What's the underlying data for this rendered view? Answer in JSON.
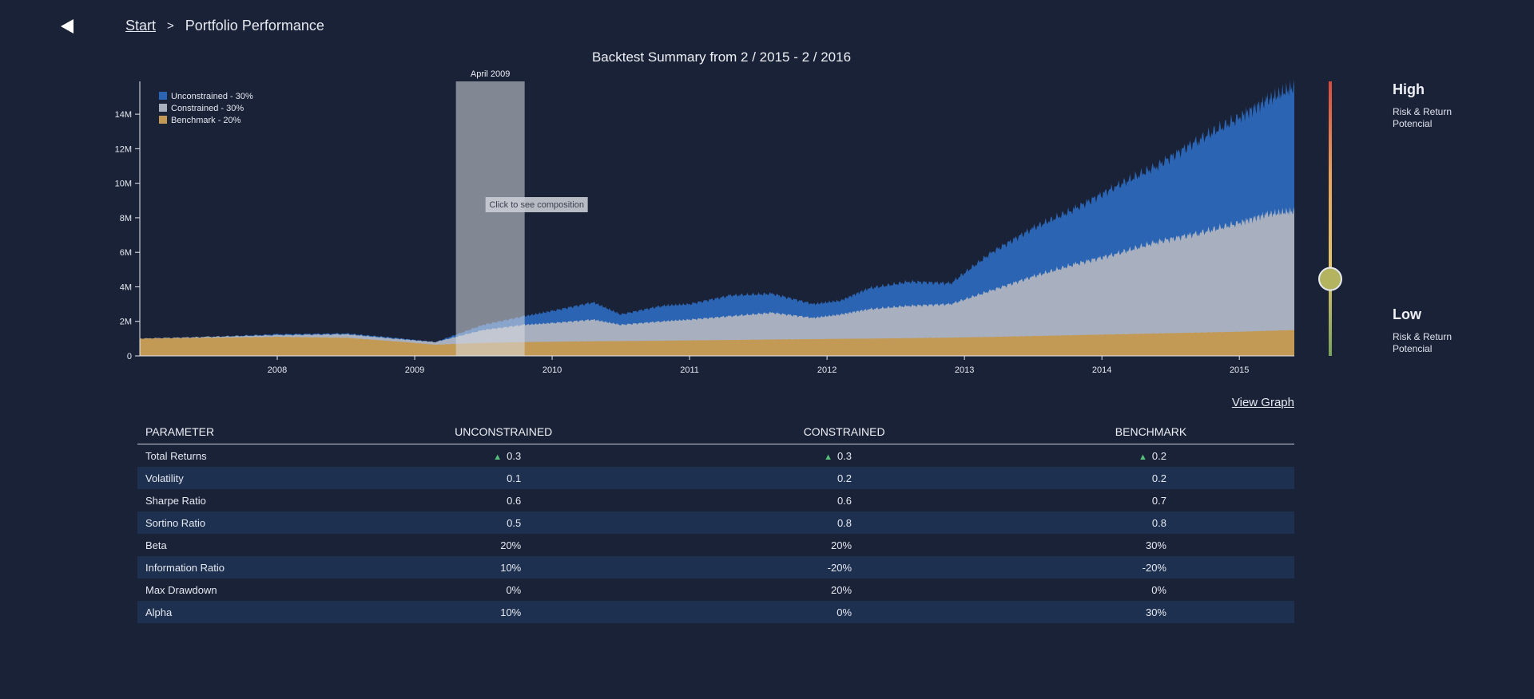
{
  "nav": {
    "back_icon": "back-arrow-icon",
    "breadcrumb_start": "Start",
    "breadcrumb_separator": ">",
    "breadcrumb_current": "Portfolio Performance"
  },
  "chart": {
    "title": "Backtest Summary from 2 / 2015 - 2 / 2016",
    "highlight_label": "April 2009",
    "tooltip": "Click to see composition"
  },
  "risk": {
    "high_label": "High",
    "high_desc": "Risk & Return Potencial",
    "low_label": "Low",
    "low_desc": "Risk & Return Potencial",
    "slider_value": 0.28,
    "gradient_colors": [
      "#d64a3f",
      "#e8a05a",
      "#e4c46a",
      "#7aa25a"
    ]
  },
  "view_graph": "View Graph",
  "table": {
    "headers": [
      "PARAMETER",
      "UNCONSTRAINED",
      "CONSTRAINED",
      "BENCHMARK"
    ],
    "rows": [
      {
        "name": "Total Returns",
        "u": "0.3",
        "c": "0.3",
        "b": "0.2",
        "trend": "up"
      },
      {
        "name": "Volatility",
        "u": "0.1",
        "c": "0.2",
        "b": "0.2"
      },
      {
        "name": "Sharpe Ratio",
        "u": "0.6",
        "c": "0.6",
        "b": "0.7"
      },
      {
        "name": "Sortino Ratio",
        "u": "0.5",
        "c": "0.8",
        "b": "0.8"
      },
      {
        "name": "Beta",
        "u": "20%",
        "c": "20%",
        "b": "30%"
      },
      {
        "name": "Information Ratio",
        "u": "10%",
        "c": "-20%",
        "b": "-20%"
      },
      {
        "name": "Max Drawdown",
        "u": "0%",
        "c": "20%",
        "b": "0%"
      },
      {
        "name": "Alpha",
        "u": "10%",
        "c": "0%",
        "b": "30%"
      }
    ]
  },
  "chart_data": {
    "type": "area",
    "title": "Backtest Summary from 2 / 2015 - 2 / 2016",
    "xlabel": "",
    "ylabel": "",
    "x_ticks": [
      "2008",
      "2009",
      "2010",
      "2011",
      "2012",
      "2013",
      "2014",
      "2015"
    ],
    "y_ticks": [
      "0",
      "2M",
      "4M",
      "6M",
      "8M",
      "10M",
      "12M",
      "14M"
    ],
    "xlim": [
      2007.0,
      2015.4
    ],
    "ylim": [
      0,
      15900000
    ],
    "legend_position": "top-left",
    "highlight": {
      "label": "April 2009",
      "start": 2009.3,
      "end": 2009.8
    },
    "series": [
      {
        "name": "Unconstrained - 30%",
        "color": "#2a64b3",
        "x": [
          2007.0,
          2007.5,
          2008.0,
          2008.5,
          2008.85,
          2009.15,
          2009.5,
          2009.8,
          2010.0,
          2010.3,
          2010.5,
          2010.8,
          2011.0,
          2011.3,
          2011.6,
          2011.9,
          2012.1,
          2012.3,
          2012.6,
          2012.9,
          2013.2,
          2013.5,
          2013.8,
          2014.1,
          2014.4,
          2014.7,
          2015.0,
          2015.2,
          2015.4
        ],
        "values": [
          1000000,
          1100000,
          1250000,
          1300000,
          1050000,
          800000,
          1800000,
          2300000,
          2600000,
          3100000,
          2400000,
          2900000,
          3000000,
          3500000,
          3600000,
          3000000,
          3200000,
          3900000,
          4300000,
          4200000,
          6000000,
          7400000,
          8500000,
          9800000,
          11000000,
          12500000,
          13800000,
          14800000,
          15600000
        ]
      },
      {
        "name": "Constrained - 30%",
        "color": "#a8b0bf",
        "x": [
          2007.0,
          2007.5,
          2008.0,
          2008.5,
          2008.85,
          2009.15,
          2009.5,
          2009.8,
          2010.0,
          2010.3,
          2010.5,
          2010.8,
          2011.0,
          2011.3,
          2011.6,
          2011.9,
          2012.1,
          2012.3,
          2012.6,
          2012.9,
          2013.2,
          2013.5,
          2013.8,
          2014.1,
          2014.4,
          2014.7,
          2015.0,
          2015.2,
          2015.4
        ],
        "values": [
          1000000,
          1100000,
          1200000,
          1250000,
          1000000,
          800000,
          1500000,
          1800000,
          1900000,
          2100000,
          1800000,
          2000000,
          2100000,
          2300000,
          2500000,
          2200000,
          2400000,
          2700000,
          2900000,
          3000000,
          3800000,
          4600000,
          5300000,
          5900000,
          6600000,
          7100000,
          7700000,
          8200000,
          8400000
        ]
      },
      {
        "name": "Benchmark - 20%",
        "color": "#c29a55",
        "x": [
          2007.0,
          2007.5,
          2008.0,
          2008.5,
          2008.85,
          2009.15,
          2009.5,
          2009.8,
          2010.0,
          2010.3,
          2010.5,
          2010.8,
          2011.0,
          2011.3,
          2011.6,
          2011.9,
          2012.1,
          2012.3,
          2012.6,
          2012.9,
          2013.2,
          2013.5,
          2013.8,
          2014.1,
          2014.4,
          2014.7,
          2015.0,
          2015.2,
          2015.4
        ],
        "values": [
          1000000,
          1050000,
          1100000,
          1050000,
          850000,
          650000,
          750000,
          800000,
          820000,
          850000,
          860000,
          880000,
          900000,
          920000,
          950000,
          970000,
          990000,
          1000000,
          1030000,
          1060000,
          1100000,
          1150000,
          1200000,
          1250000,
          1300000,
          1350000,
          1400000,
          1450000,
          1500000
        ]
      }
    ]
  }
}
